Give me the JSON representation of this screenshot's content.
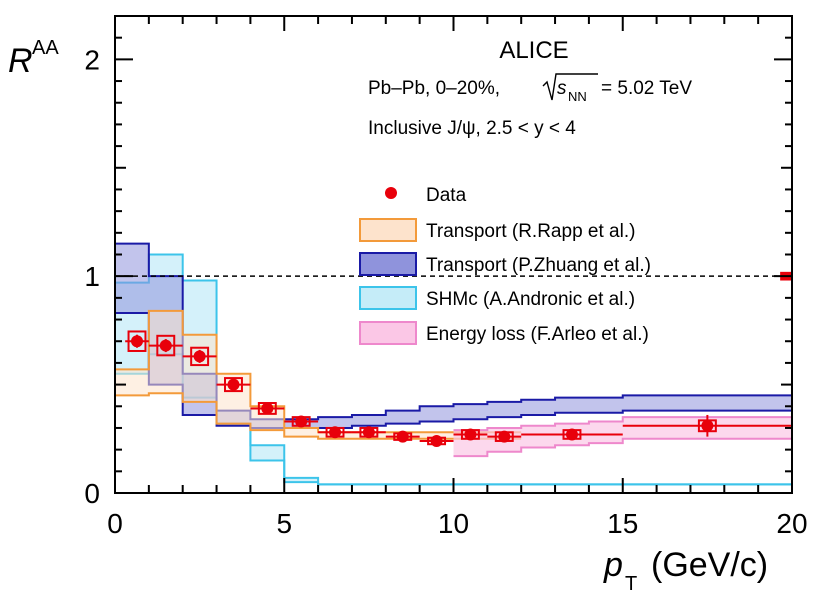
{
  "chart_data": {
    "type": "scatter",
    "experiment": "ALICE",
    "system": "Pb–Pb, 0–20%,",
    "energy_symbol": "s",
    "energy_sub": "NN",
    "energy_value": "= 5.02 TeV",
    "selection": "Inclusive J/ψ, 2.5 < y < 4",
    "ylabel_main": "R",
    "ylabel_sub": "AA",
    "xlabel_main": "p",
    "xlabel_sub": "T",
    "xlabel_unit": "(GeV/c)",
    "xlim": [
      0,
      20
    ],
    "ylim": [
      0,
      2.2
    ],
    "x_ticks": [
      "0",
      "5",
      "10",
      "15",
      "20"
    ],
    "y_ticks": [
      "0",
      "1",
      "2"
    ],
    "reference_line_y": 1,
    "global_uncertainty": {
      "x": [
        19.65,
        20
      ],
      "y": [
        0.98,
        1.02
      ]
    },
    "legend": {
      "placement": "right",
      "entries": [
        {
          "key": "data",
          "label": "Data"
        },
        {
          "key": "rapp",
          "label": "Transport (R.Rapp et al.)"
        },
        {
          "key": "zhuang",
          "label": "Transport (P.Zhuang et al.)"
        },
        {
          "key": "shmc",
          "label": "SHMc (A.Andronic et al.)"
        },
        {
          "key": "eloss",
          "label": "Energy loss (F.Arleo et al.)"
        }
      ]
    },
    "colors": {
      "data": "#e8000b",
      "rapp_line": "#f39a3a",
      "rapp_fill": "#fde3cc",
      "zhuang_line": "#1a1aa6",
      "zhuang_fill": "#8f93dc",
      "shmc_line": "#3cc4ea",
      "shmc_fill": "#c5ecf8",
      "eloss_line": "#ee88cc",
      "eloss_fill": "#fbc7e6"
    },
    "data": {
      "x": [
        0.65,
        1.5,
        2.5,
        3.5,
        4.5,
        5.5,
        6.5,
        7.5,
        8.5,
        9.5,
        10.5,
        11.5,
        13.5,
        17.5
      ],
      "y": [
        0.7,
        0.68,
        0.63,
        0.5,
        0.39,
        0.33,
        0.28,
        0.28,
        0.26,
        0.24,
        0.27,
        0.26,
        0.27,
        0.31
      ],
      "xerr": [
        0.35,
        0.5,
        0.5,
        0.5,
        0.5,
        0.5,
        0.5,
        0.5,
        0.5,
        0.5,
        0.5,
        0.5,
        1.5,
        2.5
      ],
      "stat": [
        0.03,
        0.03,
        0.03,
        0.03,
        0.02,
        0.02,
        0.02,
        0.02,
        0.02,
        0.02,
        0.02,
        0.02,
        0.02,
        0.05
      ],
      "syst": [
        0.045,
        0.045,
        0.04,
        0.03,
        0.025,
        0.02,
        0.02,
        0.02,
        0.015,
        0.015,
        0.02,
        0.02,
        0.02,
        0.025
      ],
      "syst_w": [
        0.25,
        0.25,
        0.25,
        0.25,
        0.25,
        0.25,
        0.25,
        0.25,
        0.25,
        0.25,
        0.25,
        0.25,
        0.25,
        0.25
      ]
    },
    "models": {
      "shmc": {
        "edges": [
          0,
          1,
          2,
          3,
          4,
          5,
          6,
          20
        ],
        "low": [
          0.55,
          0.64,
          0.44,
          0.32,
          0.15,
          0.05,
          0.04
        ],
        "high": [
          0.97,
          1.1,
          0.98,
          0.32,
          0.22,
          0.07,
          0.04
        ]
      },
      "rapp": {
        "edges": [
          0,
          1,
          2,
          3,
          4,
          5,
          6,
          7,
          8,
          9,
          10,
          11,
          12
        ],
        "low": [
          0.45,
          0.46,
          0.42,
          0.32,
          0.29,
          0.26,
          0.25,
          0.25,
          0.25,
          0.25,
          0.25,
          0.25
        ],
        "high": [
          0.57,
          0.84,
          0.73,
          0.55,
          0.4,
          0.3,
          0.28,
          0.28,
          0.28,
          0.28,
          0.28,
          0.28
        ]
      },
      "zhuang": {
        "edges": [
          0,
          1,
          2,
          3,
          4,
          5,
          6,
          7,
          8,
          9,
          10,
          11,
          12,
          13,
          15,
          20
        ],
        "low": [
          0.83,
          0.5,
          0.36,
          0.31,
          0.3,
          0.3,
          0.3,
          0.31,
          0.32,
          0.33,
          0.34,
          0.35,
          0.36,
          0.37,
          0.38
        ],
        "high": [
          1.15,
          1.0,
          0.55,
          0.38,
          0.34,
          0.34,
          0.35,
          0.36,
          0.38,
          0.4,
          0.41,
          0.42,
          0.43,
          0.44,
          0.45
        ]
      },
      "eloss": {
        "edges": [
          10,
          11,
          12,
          13,
          14,
          15,
          20
        ],
        "low": [
          0.17,
          0.19,
          0.21,
          0.22,
          0.23,
          0.25
        ],
        "high": [
          0.29,
          0.3,
          0.31,
          0.32,
          0.33,
          0.35
        ]
      }
    }
  }
}
